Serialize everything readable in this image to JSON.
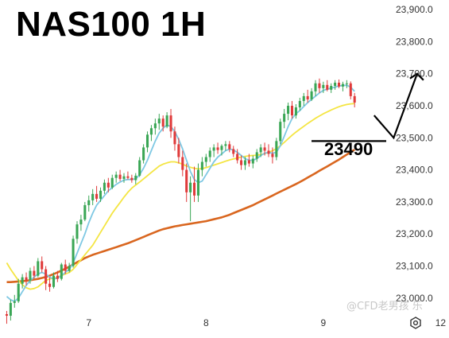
{
  "chart_title": "NAS100 1H",
  "watermark": "@CFD老男孩 乐",
  "target_level": {
    "label": "23490",
    "price": 23490
  },
  "icons": {
    "settings": "hexagon-gear-icon"
  },
  "chart_data": {
    "type": "candlestick",
    "title": "NAS100 1H",
    "ylim": [
      22950,
      23930
    ],
    "y_ticks": [
      "23,000.0",
      "23,100.0",
      "23,200.0",
      "23,300.0",
      "23,400.0",
      "23,500.0",
      "23,600.0",
      "23,700.0",
      "23,800.0",
      "23,900.0"
    ],
    "y_tick_values": [
      23000,
      23100,
      23200,
      23300,
      23400,
      23500,
      23600,
      23700,
      23800,
      23900
    ],
    "x_ticks": [
      "7",
      "8",
      "9",
      "12"
    ],
    "x_tick_index": [
      21,
      51,
      81,
      111
    ],
    "colors": {
      "up": "#3aa655",
      "down": "#e03a3a",
      "ma_fast": "#7ec8e3",
      "ma_mid": "#f4e542",
      "ma_slow": "#d9661f"
    },
    "ohlc": [
      [
        22950,
        22960,
        22920,
        22945
      ],
      [
        22945,
        22995,
        22930,
        22985
      ],
      [
        22985,
        23010,
        22970,
        22990
      ],
      [
        22990,
        23060,
        22985,
        23045
      ],
      [
        23045,
        23075,
        23030,
        23065
      ],
      [
        23065,
        23080,
        23040,
        23055
      ],
      [
        23055,
        23095,
        23045,
        23085
      ],
      [
        23085,
        23100,
        23060,
        23070
      ],
      [
        23070,
        23125,
        23065,
        23115
      ],
      [
        23115,
        23130,
        23080,
        23090
      ],
      [
        23090,
        23100,
        23025,
        23045
      ],
      [
        23045,
        23065,
        23020,
        23035
      ],
      [
        23035,
        23080,
        23030,
        23070
      ],
      [
        23070,
        23085,
        23050,
        23060
      ],
      [
        23060,
        23110,
        23055,
        23105
      ],
      [
        23105,
        23120,
        23075,
        23085
      ],
      [
        23085,
        23110,
        23080,
        23100
      ],
      [
        23100,
        23195,
        23095,
        23185
      ],
      [
        23185,
        23240,
        23170,
        23230
      ],
      [
        23230,
        23260,
        23210,
        23245
      ],
      [
        23245,
        23300,
        23240,
        23290
      ],
      [
        23290,
        23320,
        23270,
        23305
      ],
      [
        23305,
        23340,
        23290,
        23325
      ],
      [
        23325,
        23350,
        23300,
        23310
      ],
      [
        23310,
        23345,
        23300,
        23335
      ],
      [
        23335,
        23370,
        23325,
        23360
      ],
      [
        23360,
        23375,
        23330,
        23345
      ],
      [
        23345,
        23385,
        23340,
        23375
      ],
      [
        23375,
        23395,
        23360,
        23385
      ],
      [
        23385,
        23400,
        23365,
        23372
      ],
      [
        23372,
        23390,
        23360,
        23380
      ],
      [
        23380,
        23395,
        23370,
        23375
      ],
      [
        23375,
        23385,
        23360,
        23368
      ],
      [
        23368,
        23390,
        23355,
        23382
      ],
      [
        23382,
        23440,
        23378,
        23430
      ],
      [
        23430,
        23480,
        23420,
        23470
      ],
      [
        23470,
        23520,
        23455,
        23510
      ],
      [
        23510,
        23540,
        23490,
        23530
      ],
      [
        23530,
        23560,
        23510,
        23545
      ],
      [
        23545,
        23575,
        23525,
        23560
      ],
      [
        23560,
        23570,
        23520,
        23535
      ],
      [
        23535,
        23580,
        23530,
        23570
      ],
      [
        23570,
        23590,
        23500,
        23520
      ],
      [
        23520,
        23535,
        23460,
        23480
      ],
      [
        23480,
        23500,
        23420,
        23440
      ],
      [
        23440,
        23460,
        23380,
        23400
      ],
      [
        23400,
        23420,
        23300,
        23330
      ],
      [
        23330,
        23380,
        23240,
        23360
      ],
      [
        23360,
        23410,
        23300,
        23320
      ],
      [
        23320,
        23420,
        23300,
        23400
      ],
      [
        23400,
        23440,
        23380,
        23425
      ],
      [
        23425,
        23450,
        23410,
        23440
      ],
      [
        23440,
        23470,
        23425,
        23460
      ],
      [
        23460,
        23480,
        23440,
        23470
      ],
      [
        23470,
        23485,
        23450,
        23462
      ],
      [
        23462,
        23480,
        23445,
        23475
      ],
      [
        23475,
        23490,
        23460,
        23480
      ],
      [
        23480,
        23490,
        23455,
        23465
      ],
      [
        23465,
        23475,
        23440,
        23450
      ],
      [
        23450,
        23465,
        23420,
        23430
      ],
      [
        23430,
        23445,
        23400,
        23415
      ],
      [
        23415,
        23440,
        23400,
        23430
      ],
      [
        23430,
        23450,
        23410,
        23420
      ],
      [
        23420,
        23445,
        23405,
        23435
      ],
      [
        23435,
        23465,
        23425,
        23455
      ],
      [
        23455,
        23480,
        23440,
        23470
      ],
      [
        23470,
        23485,
        23445,
        23460
      ],
      [
        23460,
        23480,
        23440,
        23450
      ],
      [
        23450,
        23470,
        23420,
        23440
      ],
      [
        23440,
        23500,
        23430,
        23490
      ],
      [
        23490,
        23560,
        23480,
        23550
      ],
      [
        23550,
        23590,
        23530,
        23575
      ],
      [
        23575,
        23610,
        23555,
        23600
      ],
      [
        23600,
        23615,
        23560,
        23570
      ],
      [
        23570,
        23605,
        23560,
        23595
      ],
      [
        23595,
        23625,
        23585,
        23615
      ],
      [
        23615,
        23640,
        23600,
        23630
      ],
      [
        23630,
        23650,
        23610,
        23620
      ],
      [
        23620,
        23655,
        23615,
        23645
      ],
      [
        23645,
        23680,
        23630,
        23670
      ],
      [
        23670,
        23685,
        23640,
        23655
      ],
      [
        23655,
        23675,
        23640,
        23665
      ],
      [
        23665,
        23680,
        23645,
        23650
      ],
      [
        23650,
        23670,
        23640,
        23662
      ],
      [
        23662,
        23680,
        23650,
        23672
      ],
      [
        23672,
        23682,
        23655,
        23660
      ],
      [
        23660,
        23675,
        23645,
        23668
      ],
      [
        23668,
        23680,
        23655,
        23670
      ],
      [
        23670,
        23676,
        23620,
        23630
      ],
      [
        23630,
        23640,
        23595,
        23610
      ]
    ],
    "ma_fast": [
      23005,
      22995,
      22990,
      23000,
      23020,
      23040,
      23055,
      23065,
      23075,
      23080,
      23075,
      23065,
      23060,
      23062,
      23070,
      23080,
      23090,
      23110,
      23140,
      23170,
      23200,
      23235,
      23265,
      23290,
      23305,
      23320,
      23335,
      23345,
      23355,
      23362,
      23368,
      23370,
      23370,
      23372,
      23385,
      23405,
      23430,
      23460,
      23490,
      23515,
      23530,
      23540,
      23535,
      23520,
      23495,
      23465,
      23430,
      23395,
      23370,
      23360,
      23365,
      23385,
      23405,
      23425,
      23440,
      23450,
      23460,
      23465,
      23462,
      23455,
      23445,
      23435,
      23430,
      23430,
      23435,
      23445,
      23452,
      23455,
      23452,
      23455,
      23475,
      23505,
      23535,
      23560,
      23575,
      23585,
      23598,
      23610,
      23620,
      23630,
      23640,
      23648,
      23652,
      23655,
      23658,
      23662,
      23663,
      23664,
      23658,
      23645
    ],
    "ma_mid": [
      23110,
      23090,
      23072,
      23055,
      23042,
      23032,
      23028,
      23030,
      23035,
      23045,
      23055,
      23060,
      23062,
      23065,
      23070,
      23075,
      23080,
      23090,
      23105,
      23120,
      23135,
      23150,
      23165,
      23185,
      23205,
      23225,
      23245,
      23265,
      23282,
      23298,
      23315,
      23330,
      23343,
      23353,
      23362,
      23372,
      23382,
      23392,
      23402,
      23412,
      23418,
      23422,
      23425,
      23425,
      23422,
      23418,
      23412,
      23408,
      23405,
      23403,
      23404,
      23407,
      23411,
      23415,
      23419,
      23423,
      23427,
      23431,
      23434,
      23437,
      23440,
      23442,
      23444,
      23445,
      23446,
      23448,
      23451,
      23455,
      23460,
      23466,
      23475,
      23486,
      23497,
      23508,
      23518,
      23527,
      23536,
      23545,
      23553,
      23561,
      23568,
      23575,
      23581,
      23587,
      23592,
      23597,
      23601,
      23604,
      23606,
      23607
    ],
    "ma_slow": [
      23050,
      23050,
      23051,
      23052,
      23053,
      23054,
      23056,
      23058,
      23060,
      23063,
      23066,
      23070,
      23075,
      23080,
      23086,
      23092,
      23098,
      23105,
      23112,
      23118,
      23125,
      23130,
      23135,
      23139,
      23143,
      23147,
      23151,
      23155,
      23159,
      23163,
      23167,
      23171,
      23176,
      23181,
      23186,
      23191,
      23196,
      23201,
      23206,
      23211,
      23215,
      23218,
      23221,
      23224,
      23226,
      23228,
      23230,
      23232,
      23234,
      23236,
      23238,
      23240,
      23243,
      23246,
      23249,
      23252,
      23256,
      23260,
      23265,
      23270,
      23275,
      23280,
      23285,
      23290,
      23296,
      23302,
      23308,
      23314,
      23320,
      23326,
      23332,
      23338,
      23344,
      23350,
      23356,
      23362,
      23369,
      23376,
      23383,
      23390,
      23397,
      23404,
      23411,
      23418,
      23425,
      23432,
      23440,
      23448,
      23456,
      23463
    ],
    "projection": [
      [
        94,
        23570
      ],
      [
        99,
        23500
      ],
      [
        105,
        23700
      ]
    ]
  }
}
